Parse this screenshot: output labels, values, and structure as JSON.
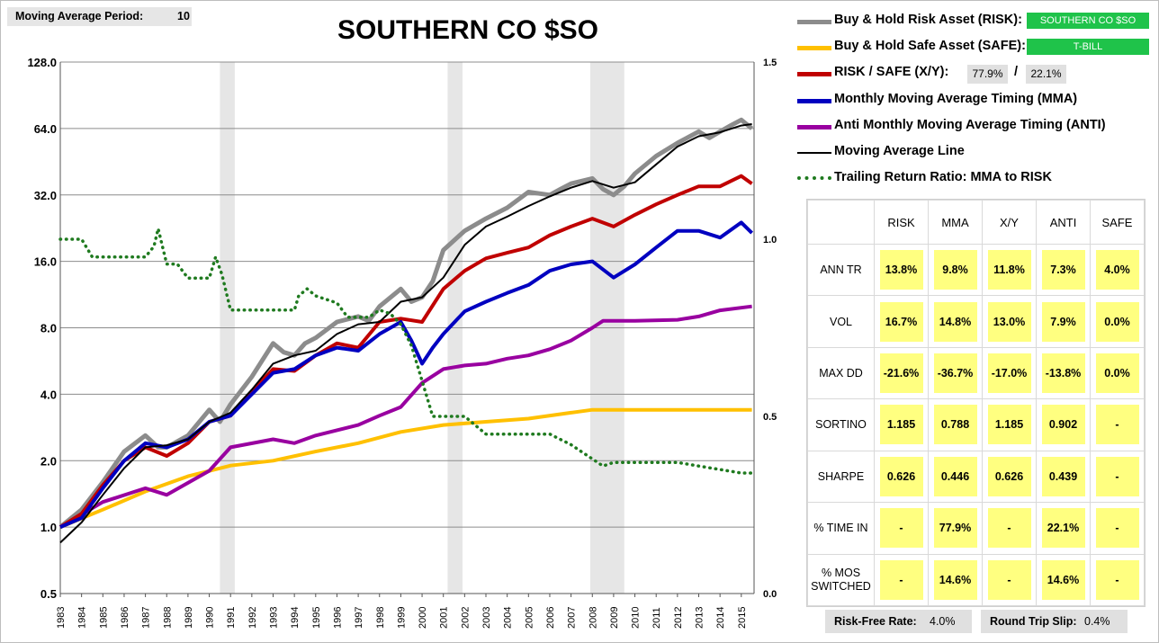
{
  "moving_average": {
    "label": "Moving Average Period:",
    "value": "10"
  },
  "title": "SOUTHERN CO $SO",
  "legend": {
    "risk": "Buy & Hold Risk Asset (RISK):",
    "risk_tag": "SOUTHERN CO $SO",
    "safe": "Buy & Hold Safe Asset (SAFE):",
    "safe_tag": "T-BILL",
    "xy": "RISK / SAFE (X/Y):",
    "xy_risk": "77.9%",
    "xy_sep": "/",
    "xy_safe": "22.1%",
    "mma": "Monthly Moving Average Timing (MMA)",
    "anti": "Anti Monthly Moving Average Timing (ANTI)",
    "maline": "Moving Average Line",
    "ratio": "Trailing Return Ratio: MMA to RISK"
  },
  "colors": {
    "risk": "#8c8c8c",
    "safe": "#ffc000",
    "xy": "#c00000",
    "mma": "#0000c0",
    "anti": "#9900a0",
    "maline": "#000000",
    "ratio": "#1f7a1f",
    "shade": "#e6e6e6",
    "tag": "#1fc34a",
    "cell": "#ffff80"
  },
  "stats": {
    "headers": [
      "RISK",
      "MMA",
      "X/Y",
      "ANTI",
      "SAFE"
    ],
    "rows": [
      {
        "label": "ANN TR",
        "values": [
          "13.8%",
          "9.8%",
          "11.8%",
          "7.3%",
          "4.0%"
        ]
      },
      {
        "label": "VOL",
        "values": [
          "16.7%",
          "14.8%",
          "13.0%",
          "7.9%",
          "0.0%"
        ]
      },
      {
        "label": "MAX DD",
        "values": [
          "-21.6%",
          "-36.7%",
          "-17.0%",
          "-13.8%",
          "0.0%"
        ]
      },
      {
        "label": "SORTINO",
        "values": [
          "1.185",
          "0.788",
          "1.185",
          "0.902",
          "-"
        ]
      },
      {
        "label": "SHARPE",
        "values": [
          "0.626",
          "0.446",
          "0.626",
          "0.439",
          "-"
        ]
      },
      {
        "label": "% TIME IN",
        "values": [
          "-",
          "77.9%",
          "-",
          "22.1%",
          "-"
        ]
      },
      {
        "label": "% MOS SWITCHED",
        "values": [
          "-",
          "14.6%",
          "-",
          "14.6%",
          "-"
        ]
      }
    ]
  },
  "footer": {
    "rf_label": "Risk-Free Rate:",
    "rf_value": "4.0%",
    "slip_label": "Round Trip Slip:",
    "slip_value": "0.4%"
  },
  "chart_data": {
    "type": "line",
    "title": "SOUTHERN CO $SO",
    "y_scale": "log2",
    "ylim": [
      0.5,
      128
    ],
    "y_ticks": [
      "128.0",
      "64.0",
      "32.0",
      "16.0",
      "8.0",
      "4.0",
      "2.0",
      "1.0",
      "0.5"
    ],
    "y2lim": [
      0.0,
      1.5
    ],
    "y2_ticks": [
      "1.5",
      "1.0",
      "0.5",
      "0.0"
    ],
    "xlim": [
      1983,
      2015.6
    ],
    "x_ticks": [
      "1983",
      "1984",
      "1985",
      "1986",
      "1987",
      "1988",
      "1989",
      "1990",
      "1991",
      "1992",
      "1993",
      "1994",
      "1995",
      "1996",
      "1997",
      "1998",
      "1999",
      "2000",
      "2001",
      "2002",
      "2003",
      "2004",
      "2005",
      "2006",
      "2007",
      "2008",
      "2009",
      "2010",
      "2011",
      "2012",
      "2013",
      "2014",
      "2015"
    ],
    "grid": "horizontal",
    "shaded_periods": [
      [
        1990.5,
        1991.2
      ],
      [
        2001.2,
        2001.9
      ],
      [
        2007.9,
        2009.5
      ]
    ],
    "series": [
      {
        "name": "Buy & Hold Risk Asset (RISK)",
        "key": "risk",
        "axis": "left",
        "x": [
          1983.0,
          1984.0,
          1985.0,
          1986.0,
          1987.0,
          1987.6,
          1988.0,
          1989.0,
          1990.0,
          1990.5,
          1991.0,
          1992.0,
          1993.0,
          1993.5,
          1994.0,
          1994.5,
          1995.0,
          1996.0,
          1997.0,
          1997.5,
          1998.0,
          1999.0,
          1999.5,
          2000.0,
          2000.5,
          2001.0,
          2002.0,
          2003.0,
          2004.0,
          2005.0,
          2006.0,
          2006.5,
          2007.0,
          2008.0,
          2008.5,
          2009.0,
          2009.5,
          2010.0,
          2011.0,
          2012.0,
          2013.0,
          2013.5,
          2014.0,
          2014.5,
          2015.0,
          2015.5
        ],
        "y": [
          1.0,
          1.2,
          1.6,
          2.2,
          2.6,
          2.3,
          2.3,
          2.6,
          3.4,
          3.0,
          3.6,
          4.8,
          6.8,
          6.2,
          6.0,
          6.8,
          7.2,
          8.5,
          9.0,
          8.6,
          10.0,
          12.0,
          10.5,
          11.0,
          13.0,
          18.0,
          22.0,
          25.0,
          28.0,
          33.0,
          32.0,
          34.0,
          36.0,
          38.0,
          34.0,
          32.0,
          35.0,
          40.0,
          48.0,
          55.0,
          62.0,
          58.0,
          62.0,
          66.0,
          70.0,
          64.0
        ]
      },
      {
        "name": "Buy & Hold Safe Asset (SAFE)",
        "key": "safe",
        "axis": "left",
        "x": [
          1983.0,
          1985.0,
          1987.0,
          1989.0,
          1991.0,
          1993.0,
          1995.0,
          1997.0,
          1999.0,
          2001.0,
          2003.0,
          2005.0,
          2007.0,
          2008.0,
          2010.0,
          2012.0,
          2015.5
        ],
        "y": [
          1.0,
          1.2,
          1.45,
          1.7,
          1.9,
          2.0,
          2.2,
          2.4,
          2.7,
          2.9,
          3.0,
          3.1,
          3.3,
          3.4,
          3.4,
          3.4,
          3.4
        ]
      },
      {
        "name": "RISK / SAFE (X/Y)",
        "key": "xy",
        "axis": "left",
        "x": [
          1983.0,
          1984.0,
          1985.0,
          1986.0,
          1987.0,
          1988.0,
          1989.0,
          1990.0,
          1991.0,
          1992.0,
          1993.0,
          1994.0,
          1995.0,
          1996.0,
          1997.0,
          1998.0,
          1999.0,
          2000.0,
          2001.0,
          2002.0,
          2003.0,
          2004.0,
          2005.0,
          2006.0,
          2007.0,
          2008.0,
          2009.0,
          2010.0,
          2011.0,
          2012.0,
          2013.0,
          2014.0,
          2015.0,
          2015.5
        ],
        "y": [
          1.0,
          1.15,
          1.55,
          2.0,
          2.3,
          2.1,
          2.4,
          3.0,
          3.2,
          4.1,
          5.2,
          5.1,
          6.0,
          6.8,
          6.5,
          8.5,
          8.8,
          8.5,
          12.0,
          14.5,
          16.5,
          17.5,
          18.5,
          21.0,
          23.0,
          25.0,
          23.0,
          26.0,
          29.0,
          32.0,
          35.0,
          35.0,
          39.0,
          36.0
        ]
      },
      {
        "name": "Monthly Moving Average Timing (MMA)",
        "key": "mma",
        "axis": "left",
        "x": [
          1983.0,
          1984.0,
          1985.0,
          1986.0,
          1987.0,
          1988.0,
          1989.0,
          1990.0,
          1991.0,
          1992.0,
          1993.0,
          1994.0,
          1995.0,
          1996.0,
          1997.0,
          1998.0,
          1999.0,
          1999.5,
          2000.0,
          2000.5,
          2001.0,
          2002.0,
          2003.0,
          2004.0,
          2005.0,
          2006.0,
          2007.0,
          2008.0,
          2009.0,
          2010.0,
          2011.0,
          2012.0,
          2013.0,
          2014.0,
          2015.0,
          2015.5
        ],
        "y": [
          1.0,
          1.1,
          1.5,
          2.0,
          2.4,
          2.3,
          2.5,
          3.0,
          3.2,
          4.0,
          5.0,
          5.2,
          6.0,
          6.5,
          6.3,
          7.5,
          8.5,
          7.0,
          5.5,
          6.5,
          7.5,
          9.5,
          10.5,
          11.5,
          12.5,
          14.5,
          15.5,
          16.0,
          13.5,
          15.5,
          18.5,
          22.0,
          22.0,
          20.5,
          24.0,
          21.5
        ]
      },
      {
        "name": "Anti Monthly Moving Average Timing (ANTI)",
        "key": "anti",
        "axis": "left",
        "x": [
          1983.0,
          1985.0,
          1987.0,
          1988.0,
          1990.0,
          1991.0,
          1993.0,
          1994.0,
          1995.0,
          1997.0,
          1998.0,
          1999.0,
          2000.0,
          2001.0,
          2002.0,
          2003.0,
          2004.0,
          2005.0,
          2006.0,
          2007.0,
          2008.0,
          2008.5,
          2010.0,
          2012.0,
          2013.0,
          2014.0,
          2015.5
        ],
        "y": [
          1.0,
          1.3,
          1.5,
          1.4,
          1.8,
          2.3,
          2.5,
          2.4,
          2.6,
          2.9,
          3.2,
          3.5,
          4.5,
          5.2,
          5.4,
          5.5,
          5.8,
          6.0,
          6.4,
          7.0,
          8.0,
          8.6,
          8.6,
          8.7,
          9.0,
          9.6,
          10.0
        ]
      },
      {
        "name": "Moving Average Line",
        "key": "maline",
        "axis": "left",
        "x": [
          1983.0,
          1984.0,
          1985.0,
          1986.0,
          1987.0,
          1988.0,
          1989.0,
          1990.0,
          1991.0,
          1992.0,
          1993.0,
          1994.0,
          1995.0,
          1996.0,
          1997.0,
          1998.0,
          1999.0,
          2000.0,
          2001.0,
          2002.0,
          2003.0,
          2004.0,
          2005.0,
          2006.0,
          2007.0,
          2008.0,
          2009.0,
          2010.0,
          2011.0,
          2012.0,
          2013.0,
          2014.0,
          2015.0,
          2015.5
        ],
        "y": [
          0.85,
          1.05,
          1.4,
          1.85,
          2.3,
          2.35,
          2.5,
          3.0,
          3.3,
          4.2,
          5.5,
          6.0,
          6.3,
          7.5,
          8.3,
          8.5,
          10.5,
          11.0,
          13.5,
          19.0,
          23.0,
          25.5,
          28.5,
          31.5,
          34.5,
          37.0,
          34.5,
          36.5,
          44.0,
          53.0,
          59.0,
          61.5,
          66.0,
          67.0
        ]
      },
      {
        "name": "Trailing Return Ratio: MMA to RISK",
        "key": "ratio",
        "axis": "right",
        "x": [
          1983.0,
          1984.0,
          1984.5,
          1985.0,
          1986.0,
          1987.0,
          1987.4,
          1987.6,
          1987.8,
          1988.0,
          1988.5,
          1989.0,
          1990.0,
          1990.3,
          1990.6,
          1991.0,
          1992.0,
          1993.0,
          1994.0,
          1994.2,
          1994.6,
          1995.0,
          1996.0,
          1996.5,
          1997.0,
          1997.5,
          1998.0,
          1998.5,
          1999.0,
          1999.5,
          2000.0,
          2000.5,
          2001.0,
          2002.0,
          2003.0,
          2004.0,
          2005.0,
          2006.0,
          2007.0,
          2007.5,
          2008.0,
          2008.5,
          2009.0,
          2010.0,
          2011.0,
          2012.0,
          2013.0,
          2014.0,
          2015.0,
          2015.5
        ],
        "y": [
          1.0,
          1.0,
          0.95,
          0.95,
          0.95,
          0.95,
          0.98,
          1.03,
          0.98,
          0.93,
          0.93,
          0.89,
          0.89,
          0.95,
          0.9,
          0.8,
          0.8,
          0.8,
          0.8,
          0.84,
          0.86,
          0.84,
          0.82,
          0.78,
          0.78,
          0.78,
          0.8,
          0.79,
          0.76,
          0.7,
          0.6,
          0.5,
          0.5,
          0.5,
          0.45,
          0.45,
          0.45,
          0.45,
          0.42,
          0.4,
          0.38,
          0.36,
          0.37,
          0.37,
          0.37,
          0.37,
          0.36,
          0.35,
          0.34,
          0.34
        ]
      }
    ]
  }
}
